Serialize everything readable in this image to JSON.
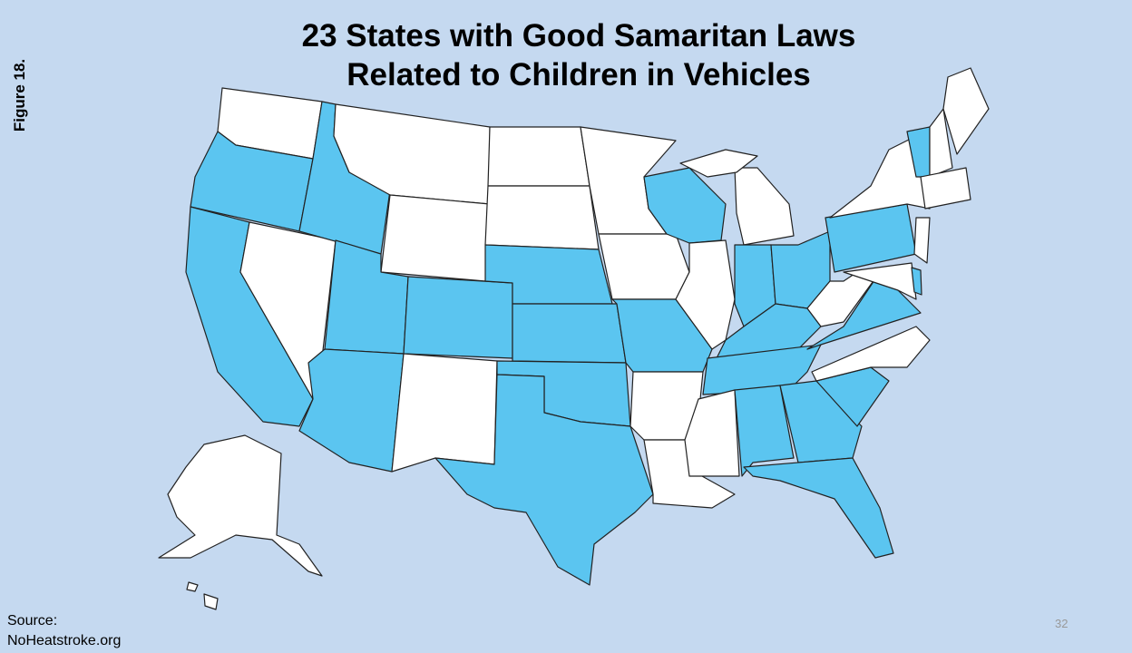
{
  "header": {
    "title_line_1": "23 States with Good Samaritan Laws",
    "title_line_2": "Related to Children in Vehicles"
  },
  "figure_label": "Figure 18.",
  "source": {
    "label": "Source:",
    "site": "NoHeatstroke.org"
  },
  "page_number": "32"
}
